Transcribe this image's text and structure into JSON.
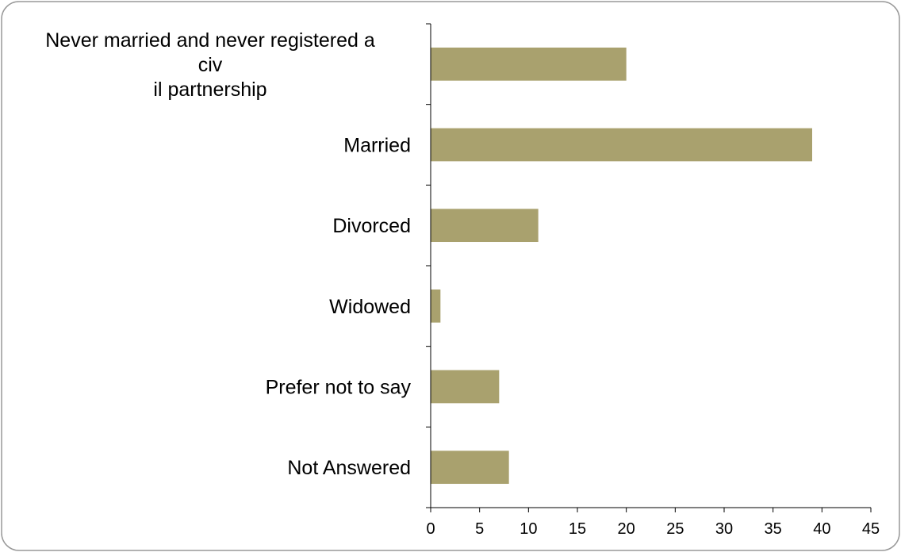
{
  "chart_data": {
    "type": "bar",
    "orientation": "horizontal",
    "categories": [
      "Never married and never registered a civ il partnership",
      "Married",
      "Divorced",
      "Widowed",
      "Prefer not to say",
      "Not Answered"
    ],
    "category_label_lines": [
      [
        "Never married and never registered a",
        "civ",
        "il partnership"
      ],
      [
        "Married"
      ],
      [
        "Divorced"
      ],
      [
        "Widowed"
      ],
      [
        "Prefer not to say"
      ],
      [
        "Not Answered"
      ]
    ],
    "values": [
      20,
      39,
      11,
      1,
      7,
      8
    ],
    "xlim": [
      0,
      45
    ],
    "xticks": [
      0,
      5,
      10,
      15,
      20,
      25,
      30,
      35,
      40,
      45
    ],
    "title": "",
    "xlabel": "",
    "ylabel": "",
    "grid": false,
    "legend": "none",
    "colors": {
      "bar": "#A9A16E",
      "axis": "#000000",
      "frame": "#999999"
    }
  }
}
